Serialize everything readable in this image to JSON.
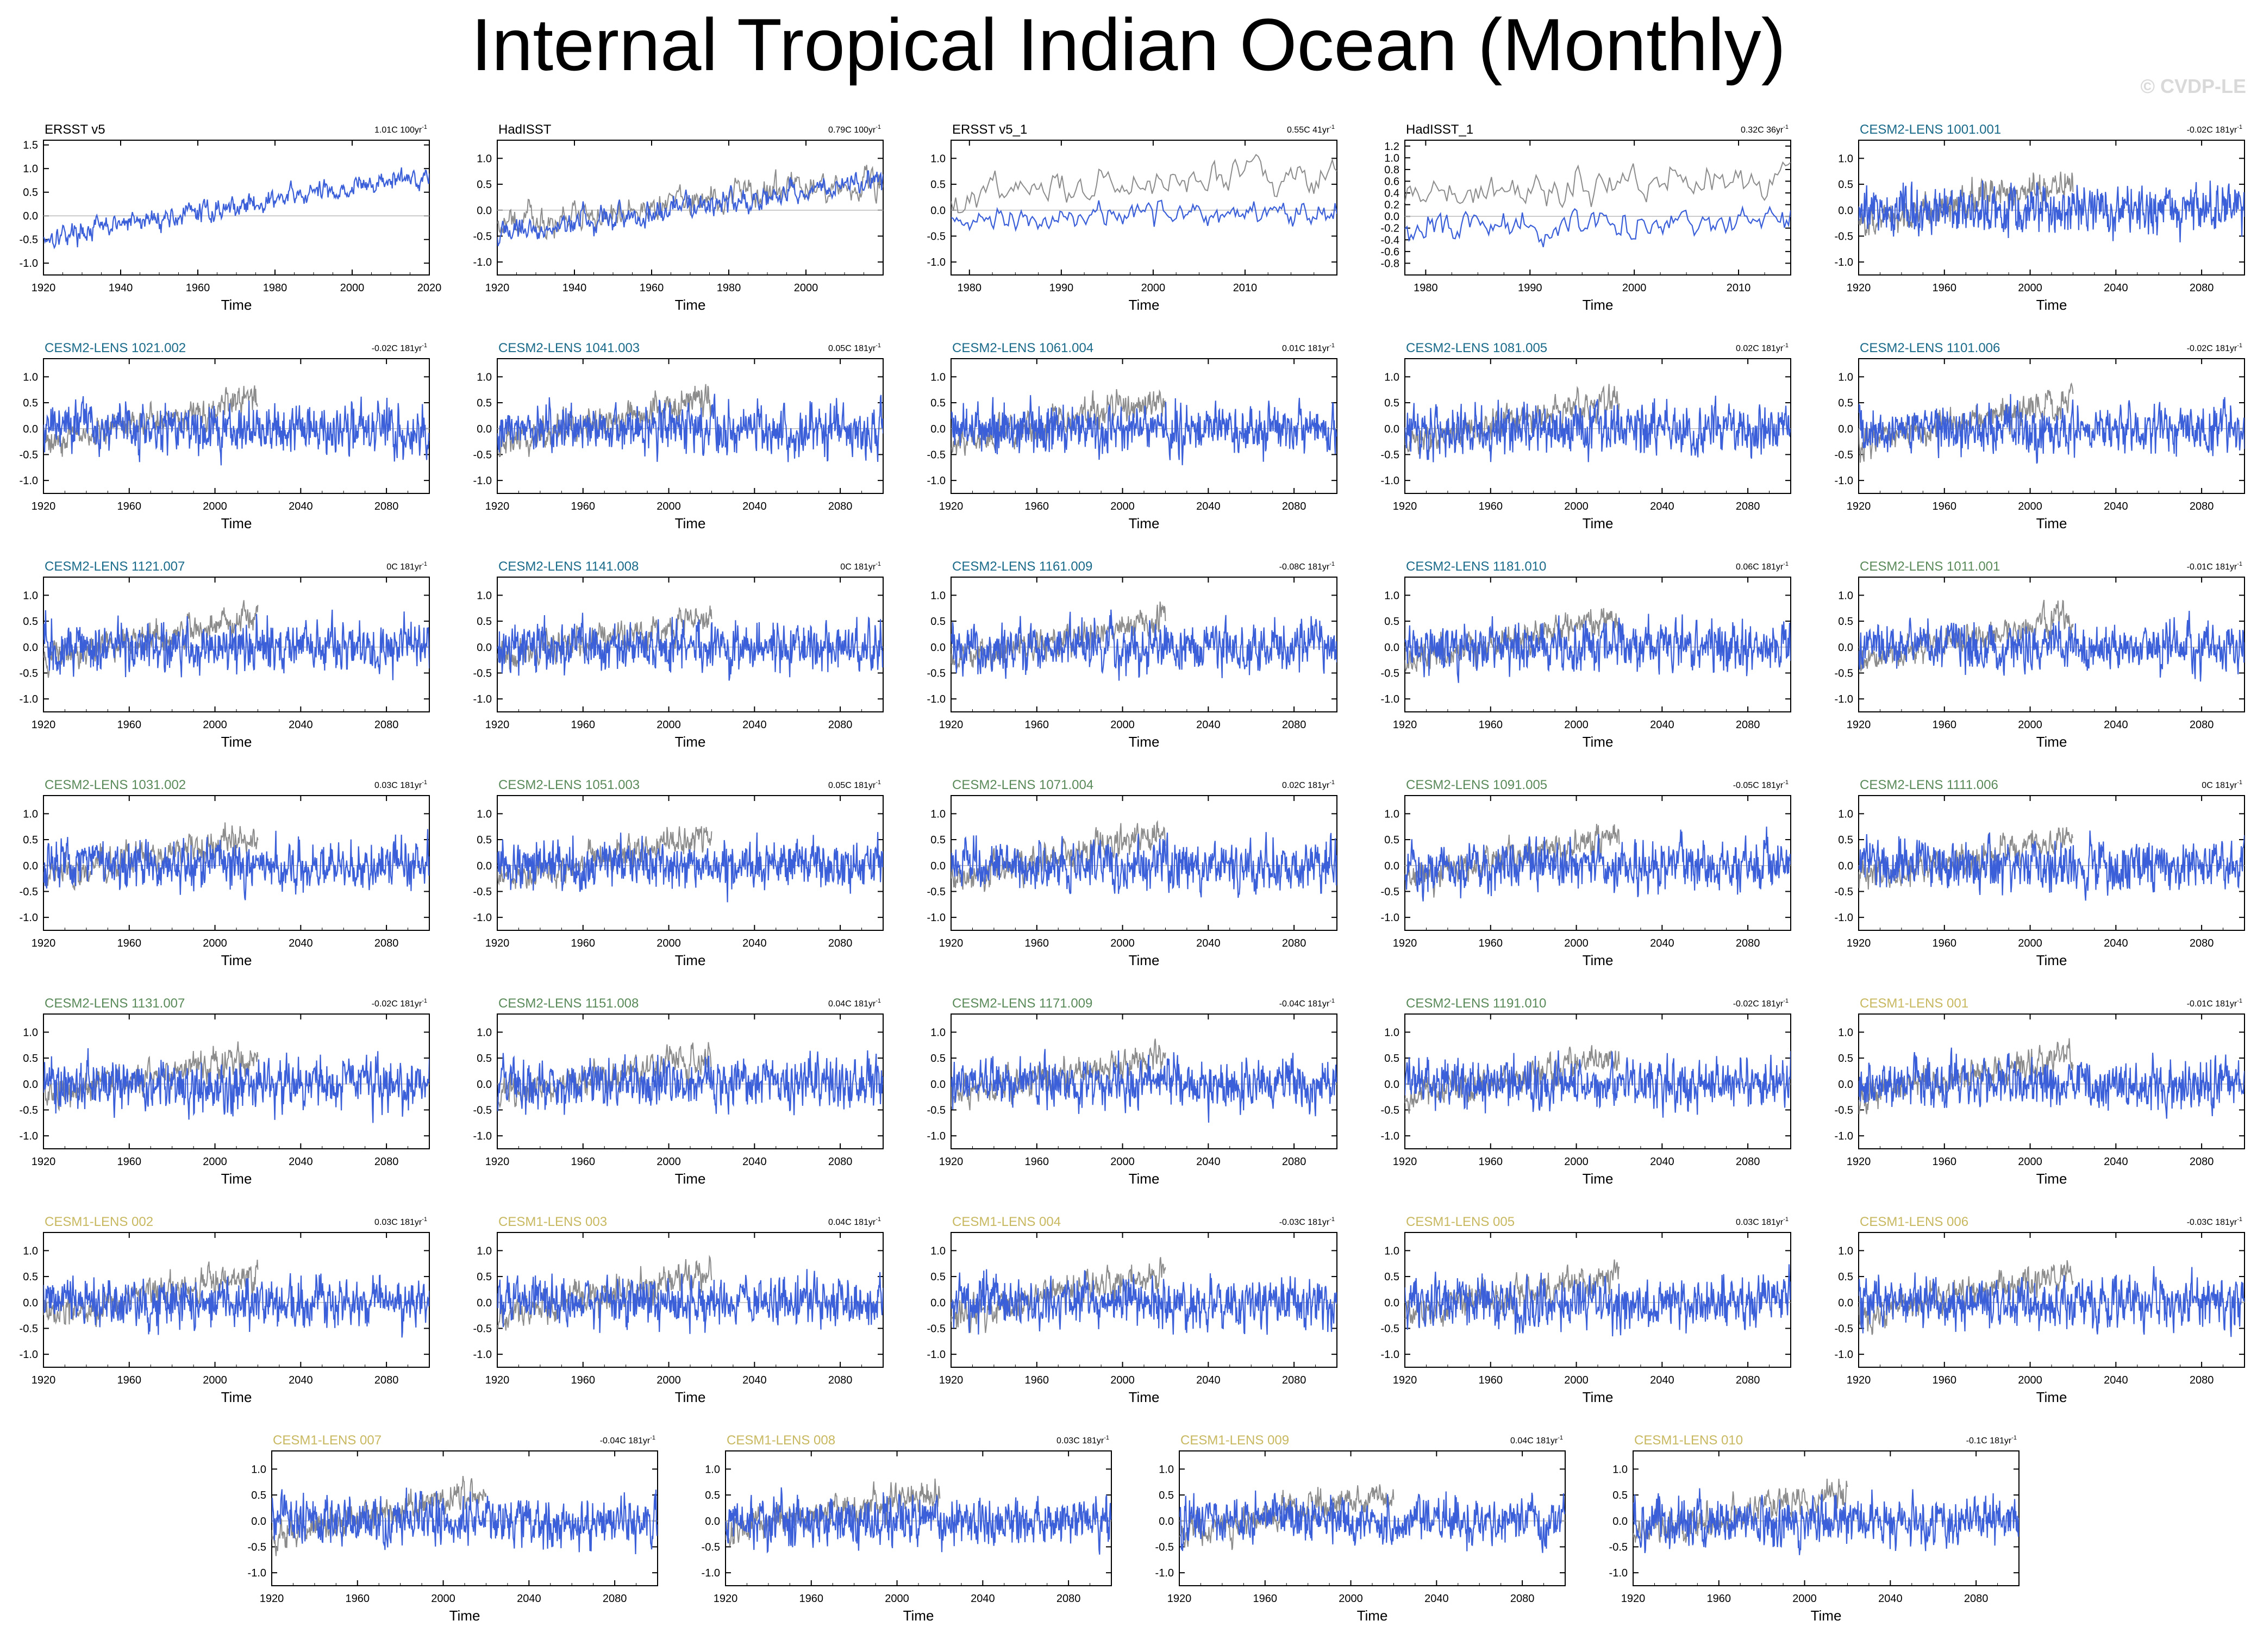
{
  "title": "Internal Tropical Indian Ocean (Monthly)",
  "watermark": "© CVDP-LE",
  "colors": {
    "model_line": "#3a5fd9",
    "obs_line": "#8c8c8c",
    "label_obs": "#000000",
    "label_cesm2_cyan": "#1a6a8a",
    "label_cesm2_green": "#5a8a5a",
    "label_cesm1": "#c8b860"
  },
  "chart_data": [
    {
      "type": "line",
      "name": "ERSST v5",
      "trend": "1.01C 100yr",
      "xlim": [
        1920,
        2020
      ],
      "ylim": [
        -1.25,
        1.6
      ],
      "xticks": [
        1920,
        1940,
        1960,
        1980,
        2000,
        2020
      ],
      "yticks": [
        -1.0,
        -0.5,
        0.0,
        0.5,
        1.0,
        1.5
      ],
      "xlabel": "Time",
      "label_color": "#000000",
      "kind": "obs",
      "trend_slope": 1.01,
      "gray_overlay": false
    },
    {
      "type": "line",
      "name": "HadISST",
      "trend": "0.79C 100yr",
      "xlim": [
        1920,
        2020
      ],
      "ylim": [
        -1.25,
        1.35
      ],
      "xticks": [
        1920,
        1940,
        1960,
        1980,
        2000
      ],
      "yticks": [
        -1.0,
        -0.5,
        0.0,
        0.5,
        1.0
      ],
      "xlabel": "Time",
      "label_color": "#000000",
      "kind": "obs",
      "trend_slope": 0.79,
      "gray_overlay": true
    },
    {
      "type": "line",
      "name": "ERSST v5_1",
      "trend": "0.55C 41yr",
      "xlim": [
        1978,
        2020
      ],
      "ylim": [
        -1.25,
        1.35
      ],
      "xticks": [
        1980,
        1990,
        2000,
        2010
      ],
      "yticks": [
        -1.0,
        -0.5,
        0.0,
        0.5,
        1.0
      ],
      "xlabel": "Time",
      "label_color": "#000000",
      "kind": "obs_short",
      "trend_slope": 0.55,
      "gray_overlay": true
    },
    {
      "type": "line",
      "name": "HadISST_1",
      "trend": "0.32C 36yr",
      "xlim": [
        1978,
        2015
      ],
      "ylim": [
        -1.0,
        1.3
      ],
      "xticks": [
        1980,
        1990,
        2000,
        2010
      ],
      "yticks": [
        -0.8,
        -0.6,
        -0.4,
        -0.2,
        0.0,
        0.2,
        0.4,
        0.6,
        0.8,
        1.0,
        1.2
      ],
      "xlabel": "Time",
      "label_color": "#000000",
      "kind": "obs_short",
      "trend_slope": 0.32,
      "gray_overlay": true
    },
    {
      "type": "line",
      "name": "CESM2-LENS 1001.001",
      "trend": "-0.02C 181yr",
      "xlim": [
        1920,
        2100
      ],
      "ylim": [
        -1.25,
        1.35
      ],
      "xticks": [
        1920,
        1960,
        2000,
        2040,
        2080
      ],
      "yticks": [
        -1.0,
        -0.5,
        0.0,
        0.5,
        1.0
      ],
      "xlabel": "Time",
      "label_color": "#1a6a8a",
      "kind": "model",
      "trend_slope": -0.02,
      "gray_overlay": true
    },
    {
      "type": "line",
      "name": "CESM2-LENS 1021.002",
      "trend": "-0.02C 181yr",
      "xlim": [
        1920,
        2100
      ],
      "ylim": [
        -1.25,
        1.35
      ],
      "xticks": [
        1920,
        1960,
        2000,
        2040,
        2080
      ],
      "yticks": [
        -1.0,
        -0.5,
        0.0,
        0.5,
        1.0
      ],
      "xlabel": "Time",
      "label_color": "#1a6a8a",
      "kind": "model",
      "trend_slope": -0.02,
      "gray_overlay": true
    },
    {
      "type": "line",
      "name": "CESM2-LENS 1041.003",
      "trend": "0.05C 181yr",
      "xlim": [
        1920,
        2100
      ],
      "ylim": [
        -1.25,
        1.35
      ],
      "xticks": [
        1920,
        1960,
        2000,
        2040,
        2080
      ],
      "yticks": [
        -1.0,
        -0.5,
        0.0,
        0.5,
        1.0
      ],
      "xlabel": "Time",
      "label_color": "#1a6a8a",
      "kind": "model",
      "trend_slope": 0.05,
      "gray_overlay": true
    },
    {
      "type": "line",
      "name": "CESM2-LENS 1061.004",
      "trend": "0.01C 181yr",
      "xlim": [
        1920,
        2100
      ],
      "ylim": [
        -1.25,
        1.35
      ],
      "xticks": [
        1920,
        1960,
        2000,
        2040,
        2080
      ],
      "yticks": [
        -1.0,
        -0.5,
        0.0,
        0.5,
        1.0
      ],
      "xlabel": "Time",
      "label_color": "#1a6a8a",
      "kind": "model",
      "trend_slope": 0.01,
      "gray_overlay": true
    },
    {
      "type": "line",
      "name": "CESM2-LENS 1081.005",
      "trend": "0.02C 181yr",
      "xlim": [
        1920,
        2100
      ],
      "ylim": [
        -1.25,
        1.35
      ],
      "xticks": [
        1920,
        1960,
        2000,
        2040,
        2080
      ],
      "yticks": [
        -1.0,
        -0.5,
        0.0,
        0.5,
        1.0
      ],
      "xlabel": "Time",
      "label_color": "#1a6a8a",
      "kind": "model",
      "trend_slope": 0.02,
      "gray_overlay": true
    },
    {
      "type": "line",
      "name": "CESM2-LENS 1101.006",
      "trend": "-0.02C 181yr",
      "xlim": [
        1920,
        2100
      ],
      "ylim": [
        -1.25,
        1.35
      ],
      "xticks": [
        1920,
        1960,
        2000,
        2040,
        2080
      ],
      "yticks": [
        -1.0,
        -0.5,
        0.0,
        0.5,
        1.0
      ],
      "xlabel": "Time",
      "label_color": "#1a6a8a",
      "kind": "model",
      "trend_slope": -0.02,
      "gray_overlay": true
    },
    {
      "type": "line",
      "name": "CESM2-LENS 1121.007",
      "trend": "0C 181yr",
      "xlim": [
        1920,
        2100
      ],
      "ylim": [
        -1.25,
        1.35
      ],
      "xticks": [
        1920,
        1960,
        2000,
        2040,
        2080
      ],
      "yticks": [
        -1.0,
        -0.5,
        0.0,
        0.5,
        1.0
      ],
      "xlabel": "Time",
      "label_color": "#1a6a8a",
      "kind": "model",
      "trend_slope": 0.0,
      "gray_overlay": true
    },
    {
      "type": "line",
      "name": "CESM2-LENS 1141.008",
      "trend": "0C 181yr",
      "xlim": [
        1920,
        2100
      ],
      "ylim": [
        -1.25,
        1.35
      ],
      "xticks": [
        1920,
        1960,
        2000,
        2040,
        2080
      ],
      "yticks": [
        -1.0,
        -0.5,
        0.0,
        0.5,
        1.0
      ],
      "xlabel": "Time",
      "label_color": "#1a6a8a",
      "kind": "model",
      "trend_slope": 0.0,
      "gray_overlay": true
    },
    {
      "type": "line",
      "name": "CESM2-LENS 1161.009",
      "trend": "-0.08C 181yr",
      "xlim": [
        1920,
        2100
      ],
      "ylim": [
        -1.25,
        1.35
      ],
      "xticks": [
        1920,
        1960,
        2000,
        2040,
        2080
      ],
      "yticks": [
        -1.0,
        -0.5,
        0.0,
        0.5,
        1.0
      ],
      "xlabel": "Time",
      "label_color": "#1a6a8a",
      "kind": "model",
      "trend_slope": -0.08,
      "gray_overlay": true
    },
    {
      "type": "line",
      "name": "CESM2-LENS 1181.010",
      "trend": "0.06C 181yr",
      "xlim": [
        1920,
        2100
      ],
      "ylim": [
        -1.25,
        1.35
      ],
      "xticks": [
        1920,
        1960,
        2000,
        2040,
        2080
      ],
      "yticks": [
        -1.0,
        -0.5,
        0.0,
        0.5,
        1.0
      ],
      "xlabel": "Time",
      "label_color": "#1a6a8a",
      "kind": "model",
      "trend_slope": 0.06,
      "gray_overlay": true
    },
    {
      "type": "line",
      "name": "CESM2-LENS 1011.001",
      "trend": "-0.01C 181yr",
      "xlim": [
        1920,
        2100
      ],
      "ylim": [
        -1.25,
        1.35
      ],
      "xticks": [
        1920,
        1960,
        2000,
        2040,
        2080
      ],
      "yticks": [
        -1.0,
        -0.5,
        0.0,
        0.5,
        1.0
      ],
      "xlabel": "Time",
      "label_color": "#5a8a5a",
      "kind": "model",
      "trend_slope": -0.01,
      "gray_overlay": true
    },
    {
      "type": "line",
      "name": "CESM2-LENS 1031.002",
      "trend": "0.03C 181yr",
      "xlim": [
        1920,
        2100
      ],
      "ylim": [
        -1.25,
        1.35
      ],
      "xticks": [
        1920,
        1960,
        2000,
        2040,
        2080
      ],
      "yticks": [
        -1.0,
        -0.5,
        0.0,
        0.5,
        1.0
      ],
      "xlabel": "Time",
      "label_color": "#5a8a5a",
      "kind": "model",
      "trend_slope": 0.03,
      "gray_overlay": true
    },
    {
      "type": "line",
      "name": "CESM2-LENS 1051.003",
      "trend": "0.05C 181yr",
      "xlim": [
        1920,
        2100
      ],
      "ylim": [
        -1.25,
        1.35
      ],
      "xticks": [
        1920,
        1960,
        2000,
        2040,
        2080
      ],
      "yticks": [
        -1.0,
        -0.5,
        0.0,
        0.5,
        1.0
      ],
      "xlabel": "Time",
      "label_color": "#5a8a5a",
      "kind": "model",
      "trend_slope": 0.05,
      "gray_overlay": true
    },
    {
      "type": "line",
      "name": "CESM2-LENS 1071.004",
      "trend": "0.02C 181yr",
      "xlim": [
        1920,
        2100
      ],
      "ylim": [
        -1.25,
        1.35
      ],
      "xticks": [
        1920,
        1960,
        2000,
        2040,
        2080
      ],
      "yticks": [
        -1.0,
        -0.5,
        0.0,
        0.5,
        1.0
      ],
      "xlabel": "Time",
      "label_color": "#5a8a5a",
      "kind": "model",
      "trend_slope": 0.02,
      "gray_overlay": true
    },
    {
      "type": "line",
      "name": "CESM2-LENS 1091.005",
      "trend": "-0.05C 181yr",
      "xlim": [
        1920,
        2100
      ],
      "ylim": [
        -1.25,
        1.35
      ],
      "xticks": [
        1920,
        1960,
        2000,
        2040,
        2080
      ],
      "yticks": [
        -1.0,
        -0.5,
        0.0,
        0.5,
        1.0
      ],
      "xlabel": "Time",
      "label_color": "#5a8a5a",
      "kind": "model",
      "trend_slope": -0.05,
      "gray_overlay": true
    },
    {
      "type": "line",
      "name": "CESM2-LENS 1111.006",
      "trend": "0C 181yr",
      "xlim": [
        1920,
        2100
      ],
      "ylim": [
        -1.25,
        1.35
      ],
      "xticks": [
        1920,
        1960,
        2000,
        2040,
        2080
      ],
      "yticks": [
        -1.0,
        -0.5,
        0.0,
        0.5,
        1.0
      ],
      "xlabel": "Time",
      "label_color": "#5a8a5a",
      "kind": "model",
      "trend_slope": 0.0,
      "gray_overlay": true
    },
    {
      "type": "line",
      "name": "CESM2-LENS 1131.007",
      "trend": "-0.02C 181yr",
      "xlim": [
        1920,
        2100
      ],
      "ylim": [
        -1.25,
        1.35
      ],
      "xticks": [
        1920,
        1960,
        2000,
        2040,
        2080
      ],
      "yticks": [
        -1.0,
        -0.5,
        0.0,
        0.5,
        1.0
      ],
      "xlabel": "Time",
      "label_color": "#5a8a5a",
      "kind": "model",
      "trend_slope": -0.02,
      "gray_overlay": true
    },
    {
      "type": "line",
      "name": "CESM2-LENS 1151.008",
      "trend": "0.04C 181yr",
      "xlim": [
        1920,
        2100
      ],
      "ylim": [
        -1.25,
        1.35
      ],
      "xticks": [
        1920,
        1960,
        2000,
        2040,
        2080
      ],
      "yticks": [
        -1.0,
        -0.5,
        0.0,
        0.5,
        1.0
      ],
      "xlabel": "Time",
      "label_color": "#5a8a5a",
      "kind": "model",
      "trend_slope": 0.04,
      "gray_overlay": true
    },
    {
      "type": "line",
      "name": "CESM2-LENS 1171.009",
      "trend": "-0.04C 181yr",
      "xlim": [
        1920,
        2100
      ],
      "ylim": [
        -1.25,
        1.35
      ],
      "xticks": [
        1920,
        1960,
        2000,
        2040,
        2080
      ],
      "yticks": [
        -1.0,
        -0.5,
        0.0,
        0.5,
        1.0
      ],
      "xlabel": "Time",
      "label_color": "#5a8a5a",
      "kind": "model",
      "trend_slope": -0.04,
      "gray_overlay": true
    },
    {
      "type": "line",
      "name": "CESM2-LENS 1191.010",
      "trend": "-0.02C 181yr",
      "xlim": [
        1920,
        2100
      ],
      "ylim": [
        -1.25,
        1.35
      ],
      "xticks": [
        1920,
        1960,
        2000,
        2040,
        2080
      ],
      "yticks": [
        -1.0,
        -0.5,
        0.0,
        0.5,
        1.0
      ],
      "xlabel": "Time",
      "label_color": "#5a8a5a",
      "kind": "model",
      "trend_slope": -0.02,
      "gray_overlay": true
    },
    {
      "type": "line",
      "name": "CESM1-LENS 001",
      "trend": "-0.01C 181yr",
      "xlim": [
        1920,
        2100
      ],
      "ylim": [
        -1.25,
        1.35
      ],
      "xticks": [
        1920,
        1960,
        2000,
        2040,
        2080
      ],
      "yticks": [
        -1.0,
        -0.5,
        0.0,
        0.5,
        1.0
      ],
      "xlabel": "Time",
      "label_color": "#c8b860",
      "kind": "model",
      "trend_slope": -0.01,
      "gray_overlay": true
    },
    {
      "type": "line",
      "name": "CESM1-LENS 002",
      "trend": "0.03C 181yr",
      "xlim": [
        1920,
        2100
      ],
      "ylim": [
        -1.25,
        1.35
      ],
      "xticks": [
        1920,
        1960,
        2000,
        2040,
        2080
      ],
      "yticks": [
        -1.0,
        -0.5,
        0.0,
        0.5,
        1.0
      ],
      "xlabel": "Time",
      "label_color": "#c8b860",
      "kind": "model",
      "trend_slope": 0.03,
      "gray_overlay": true
    },
    {
      "type": "line",
      "name": "CESM1-LENS 003",
      "trend": "0.04C 181yr",
      "xlim": [
        1920,
        2100
      ],
      "ylim": [
        -1.25,
        1.35
      ],
      "xticks": [
        1920,
        1960,
        2000,
        2040,
        2080
      ],
      "yticks": [
        -1.0,
        -0.5,
        0.0,
        0.5,
        1.0
      ],
      "xlabel": "Time",
      "label_color": "#c8b860",
      "kind": "model",
      "trend_slope": 0.04,
      "gray_overlay": true
    },
    {
      "type": "line",
      "name": "CESM1-LENS 004",
      "trend": "-0.03C 181yr",
      "xlim": [
        1920,
        2100
      ],
      "ylim": [
        -1.25,
        1.35
      ],
      "xticks": [
        1920,
        1960,
        2000,
        2040,
        2080
      ],
      "yticks": [
        -1.0,
        -0.5,
        0.0,
        0.5,
        1.0
      ],
      "xlabel": "Time",
      "label_color": "#c8b860",
      "kind": "model",
      "trend_slope": -0.03,
      "gray_overlay": true
    },
    {
      "type": "line",
      "name": "CESM1-LENS 005",
      "trend": "0.03C 181yr",
      "xlim": [
        1920,
        2100
      ],
      "ylim": [
        -1.25,
        1.35
      ],
      "xticks": [
        1920,
        1960,
        2000,
        2040,
        2080
      ],
      "yticks": [
        -1.0,
        -0.5,
        0.0,
        0.5,
        1.0
      ],
      "xlabel": "Time",
      "label_color": "#c8b860",
      "kind": "model",
      "trend_slope": 0.03,
      "gray_overlay": true
    },
    {
      "type": "line",
      "name": "CESM1-LENS 006",
      "trend": "-0.03C 181yr",
      "xlim": [
        1920,
        2100
      ],
      "ylim": [
        -1.25,
        1.35
      ],
      "xticks": [
        1920,
        1960,
        2000,
        2040,
        2080
      ],
      "yticks": [
        -1.0,
        -0.5,
        0.0,
        0.5,
        1.0
      ],
      "xlabel": "Time",
      "label_color": "#c8b860",
      "kind": "model",
      "trend_slope": -0.03,
      "gray_overlay": true
    },
    {
      "type": "line",
      "name": "CESM1-LENS 007",
      "trend": "-0.04C 181yr",
      "xlim": [
        1920,
        2100
      ],
      "ylim": [
        -1.25,
        1.35
      ],
      "xticks": [
        1920,
        1960,
        2000,
        2040,
        2080
      ],
      "yticks": [
        -1.0,
        -0.5,
        0.0,
        0.5,
        1.0
      ],
      "xlabel": "Time",
      "label_color": "#c8b860",
      "kind": "model",
      "trend_slope": -0.04,
      "gray_overlay": true
    },
    {
      "type": "line",
      "name": "CESM1-LENS 008",
      "trend": "0.03C 181yr",
      "xlim": [
        1920,
        2100
      ],
      "ylim": [
        -1.25,
        1.35
      ],
      "xticks": [
        1920,
        1960,
        2000,
        2040,
        2080
      ],
      "yticks": [
        -1.0,
        -0.5,
        0.0,
        0.5,
        1.0
      ],
      "xlabel": "Time",
      "label_color": "#c8b860",
      "kind": "model",
      "trend_slope": 0.03,
      "gray_overlay": true
    },
    {
      "type": "line",
      "name": "CESM1-LENS 009",
      "trend": "0.04C 181yr",
      "xlim": [
        1920,
        2100
      ],
      "ylim": [
        -1.25,
        1.35
      ],
      "xticks": [
        1920,
        1960,
        2000,
        2040,
        2080
      ],
      "yticks": [
        -1.0,
        -0.5,
        0.0,
        0.5,
        1.0
      ],
      "xlabel": "Time",
      "label_color": "#c8b860",
      "kind": "model",
      "trend_slope": 0.04,
      "gray_overlay": true
    },
    {
      "type": "line",
      "name": "CESM1-LENS 010",
      "trend": "-0.1C 181yr",
      "xlim": [
        1920,
        2100
      ],
      "ylim": [
        -1.25,
        1.35
      ],
      "xticks": [
        1920,
        1960,
        2000,
        2040,
        2080
      ],
      "yticks": [
        -1.0,
        -0.5,
        0.0,
        0.5,
        1.0
      ],
      "xlabel": "Time",
      "label_color": "#c8b860",
      "kind": "model",
      "trend_slope": -0.1,
      "gray_overlay": true
    }
  ]
}
